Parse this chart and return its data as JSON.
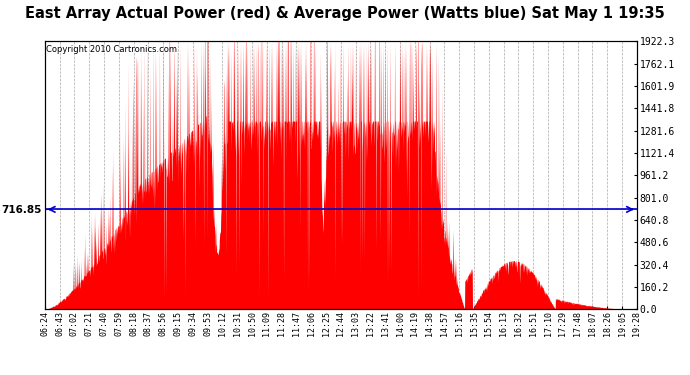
{
  "title": "East Array Actual Power (red) & Average Power (Watts blue) Sat May 1 19:35",
  "copyright": "Copyright 2010 Cartronics.com",
  "avg_power": 716.85,
  "ymax": 1922.3,
  "ymin": 0.0,
  "yticks": [
    0.0,
    160.2,
    320.4,
    480.6,
    640.8,
    801.0,
    961.2,
    1121.4,
    1281.6,
    1441.8,
    1601.9,
    1762.1,
    1922.3
  ],
  "bg_color": "#ffffff",
  "plot_bg_color": "#ffffff",
  "grid_color": "#888888",
  "red_color": "#ff0000",
  "blue_color": "#0000cc",
  "xtick_labels": [
    "06:24",
    "06:43",
    "07:02",
    "07:21",
    "07:40",
    "07:59",
    "08:18",
    "08:37",
    "08:56",
    "09:15",
    "09:34",
    "09:53",
    "10:12",
    "10:31",
    "10:50",
    "11:09",
    "11:28",
    "11:47",
    "12:06",
    "12:25",
    "12:44",
    "13:03",
    "13:22",
    "13:41",
    "14:00",
    "14:19",
    "14:38",
    "14:57",
    "15:16",
    "15:35",
    "15:54",
    "16:13",
    "16:32",
    "16:51",
    "17:10",
    "17:29",
    "17:48",
    "18:07",
    "18:26",
    "19:05",
    "19:28"
  ]
}
